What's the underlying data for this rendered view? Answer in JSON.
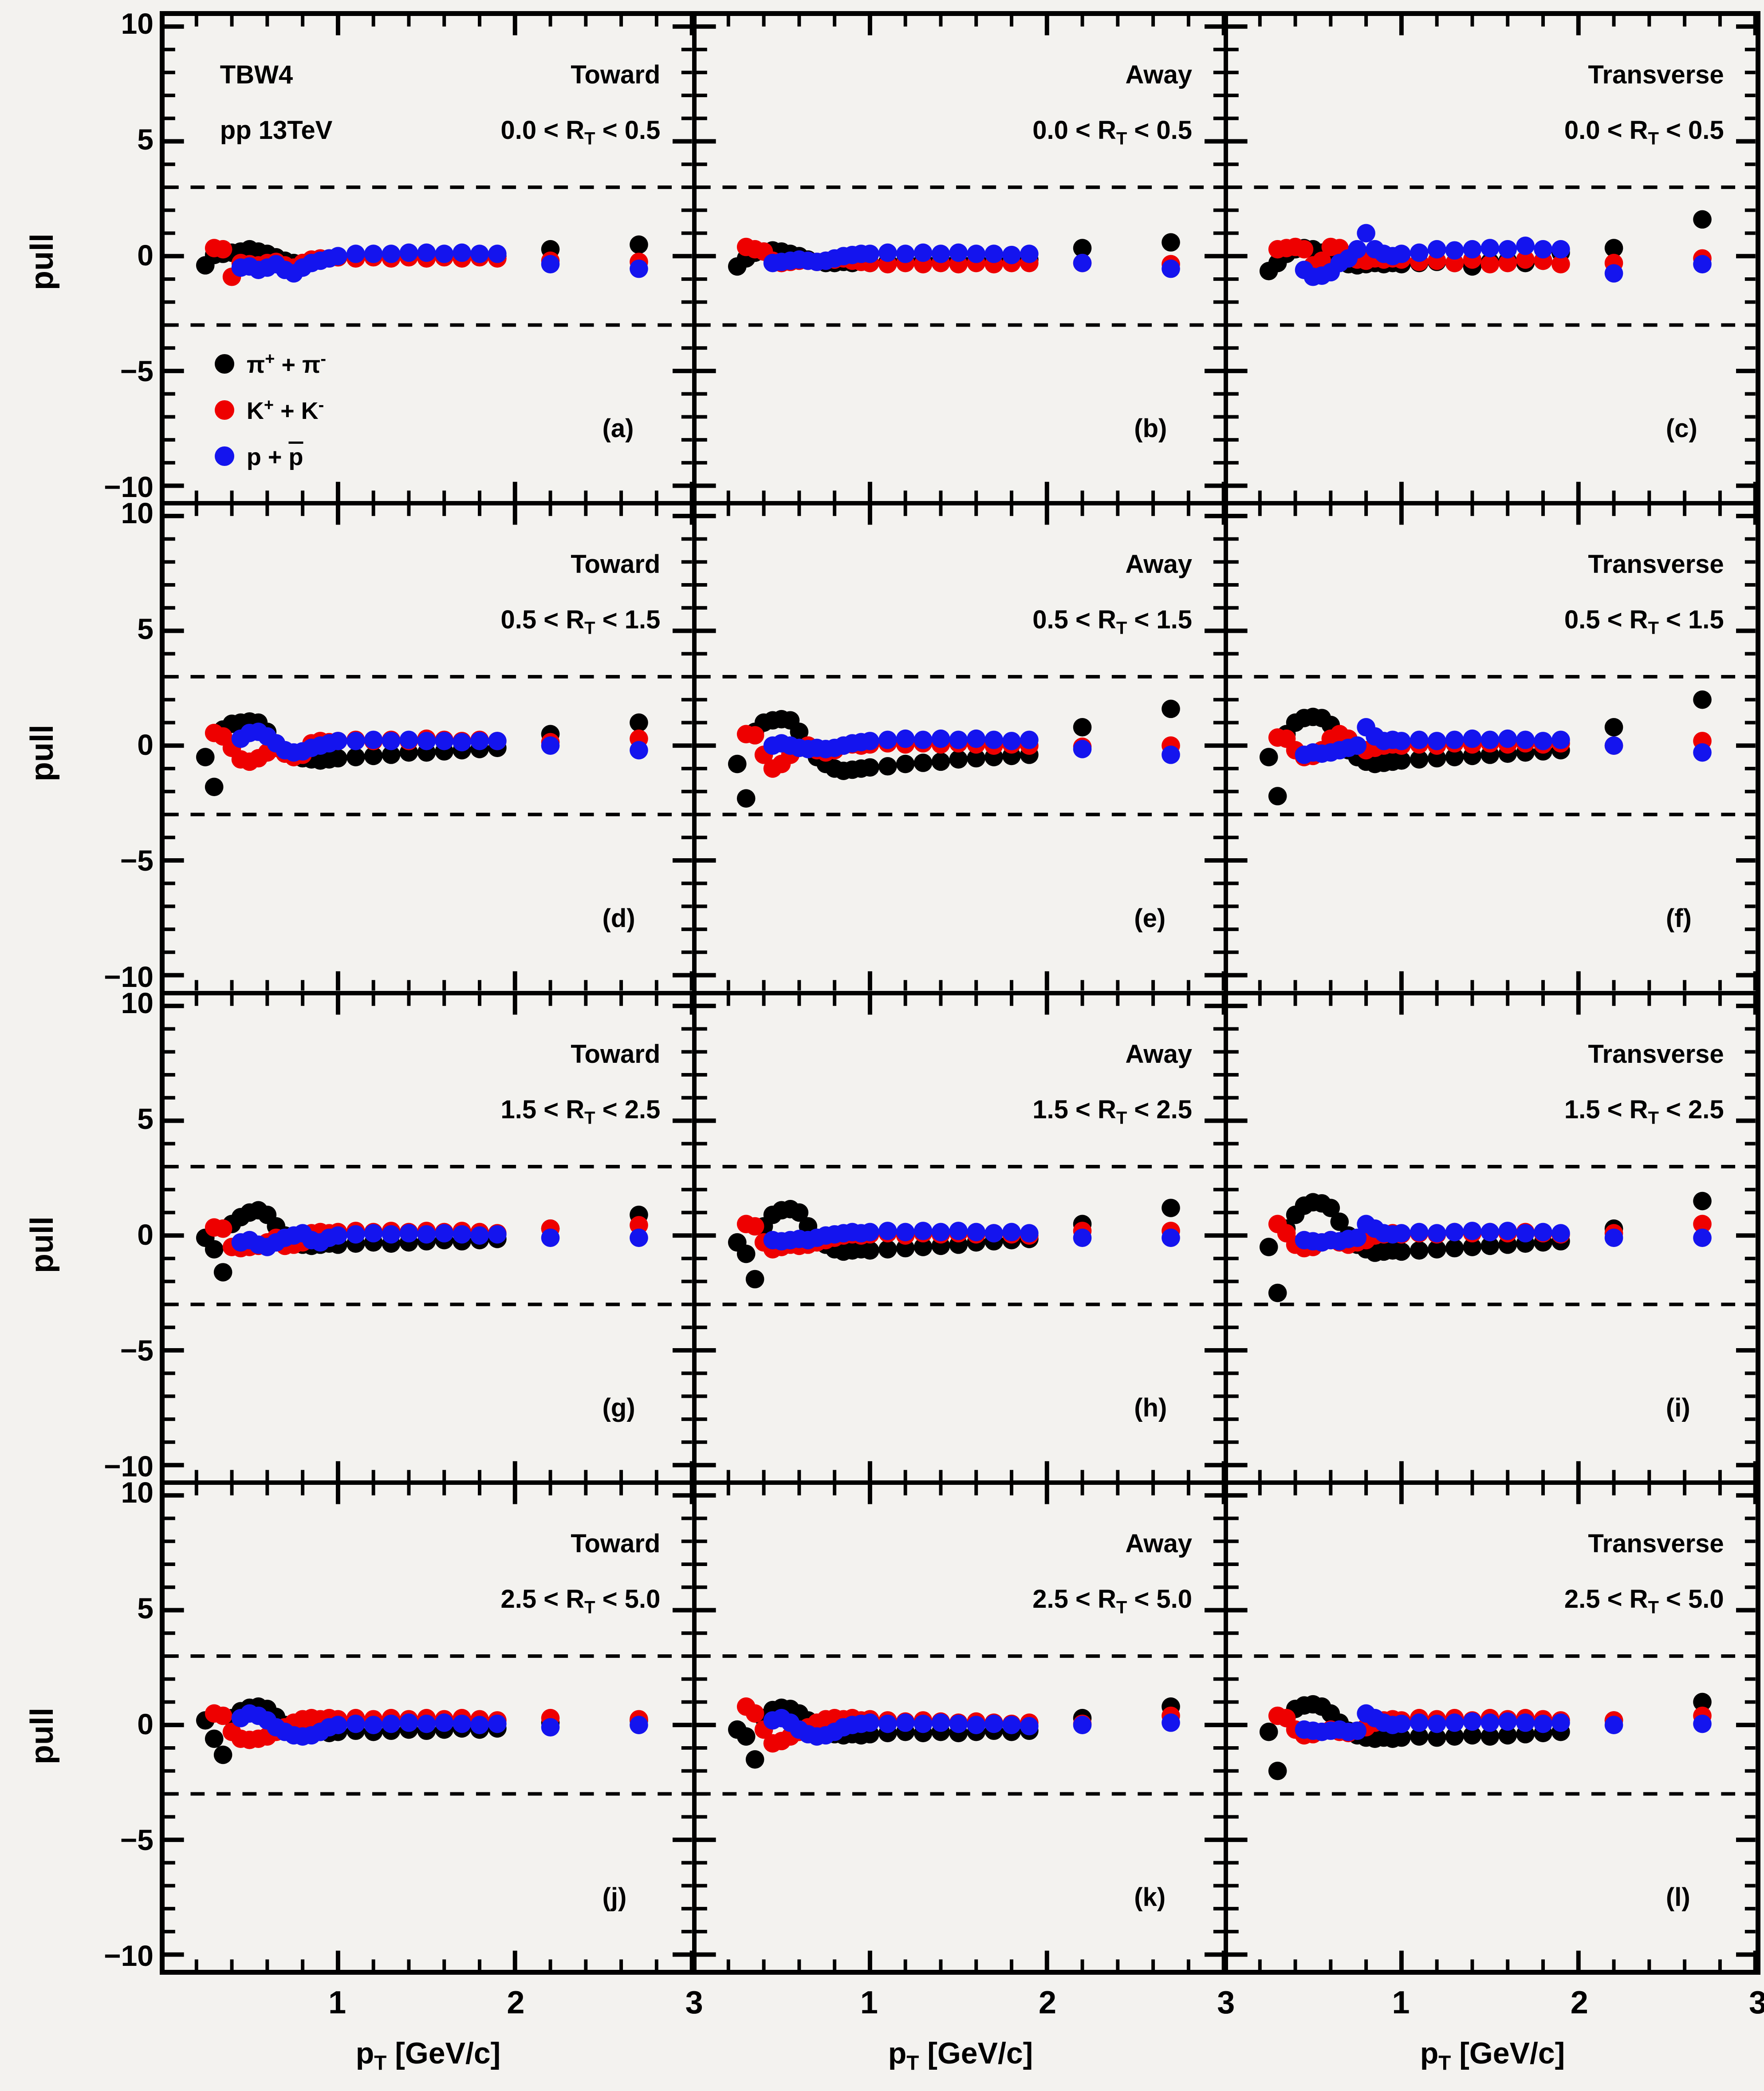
{
  "header": {
    "model": "TBW4",
    "system": "pp 13TeV"
  },
  "axes": {
    "y_title": "pull",
    "x_title_parts": [
      "p",
      "T",
      " [GeV/c]"
    ]
  },
  "legend": [
    {
      "a": "π",
      "asup": "+",
      "mid": " + ",
      "b": "π",
      "bsup": "-",
      "series": "pions"
    },
    {
      "a": "K",
      "asup": "+",
      "mid": " + ",
      "b": "K",
      "bsup": "-",
      "series": "kaons"
    },
    {
      "a": "p",
      "asup": "",
      "mid": " + ",
      "b": "p",
      "bsup": "",
      "series": "protons"
    }
  ],
  "chart_data": {
    "type": "scatter",
    "title": "TBW4 pp 13TeV pull distributions",
    "xlabel": "p_T [GeV/c]",
    "ylabel": "pull",
    "xlim": [
      0.02,
      3.0
    ],
    "ylim": [
      -10.67,
      10.46
    ],
    "band_lines": [
      3,
      -3
    ],
    "grid": false,
    "x_ticks": [
      {
        "label": "1",
        "v": 1
      },
      {
        "label": "2",
        "v": 2
      },
      {
        "label": "3",
        "v": 3
      }
    ],
    "x_minor_step": 0.2,
    "y_ticks": [
      {
        "label": "10",
        "v": 10
      },
      {
        "label": "5",
        "v": 5
      },
      {
        "label": "0",
        "v": 0
      },
      {
        "label": "−5",
        "v": -5
      },
      {
        "label": "−10",
        "v": -10
      }
    ],
    "y_minor_step": 1,
    "series_colors": {
      "pions": "#000000",
      "kaons": "#ee0000",
      "protons": "#1414ee"
    },
    "x_pions": [
      0.25,
      0.3,
      0.35,
      0.4,
      0.45,
      0.5,
      0.55,
      0.6,
      0.65,
      0.7,
      0.75,
      0.8,
      0.85,
      0.9,
      0.95,
      1.0,
      1.1,
      1.2,
      1.3,
      1.4,
      1.5,
      1.6,
      1.7,
      1.8,
      1.9,
      2.2,
      2.7
    ],
    "x_kaons": [
      0.3,
      0.35,
      0.4,
      0.45,
      0.5,
      0.55,
      0.6,
      0.65,
      0.7,
      0.75,
      0.8,
      0.85,
      0.9,
      0.95,
      1.0,
      1.1,
      1.2,
      1.3,
      1.4,
      1.5,
      1.6,
      1.7,
      1.8,
      1.9,
      2.2,
      2.7
    ],
    "x_protons": [
      0.45,
      0.5,
      0.55,
      0.6,
      0.65,
      0.7,
      0.75,
      0.8,
      0.85,
      0.9,
      0.95,
      1.0,
      1.1,
      1.2,
      1.3,
      1.4,
      1.5,
      1.6,
      1.7,
      1.8,
      1.9,
      2.2,
      2.7
    ],
    "panels": [
      {
        "letter": "(a)",
        "region": "Toward",
        "rt_parts": [
          "0.0 < R",
          "T",
          " < 0.5"
        ],
        "pions": [
          -0.4,
          0.05,
          0.1,
          0.15,
          0.2,
          0.3,
          0.2,
          0.1,
          -0.05,
          -0.2,
          -0.3,
          -0.3,
          -0.25,
          -0.15,
          -0.1,
          -0.05,
          0.0,
          0.05,
          0.05,
          0.0,
          0.05,
          0.05,
          0.0,
          0.0,
          0.0,
          0.3,
          0.5
        ],
        "kaons": [
          0.35,
          0.3,
          -0.9,
          -0.3,
          -0.35,
          -0.4,
          -0.3,
          -0.25,
          -0.4,
          -0.5,
          -0.3,
          -0.15,
          -0.1,
          -0.1,
          -0.05,
          -0.1,
          -0.05,
          -0.1,
          -0.05,
          -0.1,
          -0.05,
          -0.1,
          -0.05,
          -0.1,
          -0.2,
          -0.25
        ],
        "protons": [
          -0.5,
          -0.45,
          -0.6,
          -0.5,
          -0.35,
          -0.6,
          -0.75,
          -0.5,
          -0.3,
          -0.2,
          -0.1,
          0.0,
          0.1,
          0.1,
          0.1,
          0.15,
          0.15,
          0.1,
          0.15,
          0.1,
          0.1,
          -0.35,
          -0.55
        ]
      },
      {
        "letter": "(b)",
        "region": "Away",
        "rt_parts": [
          "0.0 < R",
          "T",
          " < 0.5"
        ],
        "pions": [
          -0.45,
          -0.1,
          0.15,
          0.2,
          0.25,
          0.2,
          0.1,
          0.0,
          -0.15,
          -0.25,
          -0.3,
          -0.3,
          -0.25,
          -0.3,
          -0.25,
          -0.3,
          -0.25,
          -0.2,
          -0.2,
          -0.15,
          -0.2,
          -0.15,
          -0.2,
          -0.15,
          -0.15,
          0.35,
          0.6
        ],
        "kaons": [
          0.4,
          0.3,
          0.2,
          -0.2,
          -0.3,
          -0.25,
          -0.2,
          -0.2,
          -0.25,
          -0.2,
          -0.15,
          -0.1,
          -0.2,
          -0.25,
          -0.3,
          -0.35,
          -0.3,
          -0.35,
          -0.3,
          -0.35,
          -0.3,
          -0.35,
          -0.3,
          -0.3,
          -0.3,
          -0.35
        ],
        "protons": [
          -0.3,
          -0.25,
          -0.2,
          -0.15,
          -0.2,
          -0.25,
          -0.2,
          -0.1,
          0.0,
          0.05,
          0.1,
          0.1,
          0.15,
          0.1,
          0.15,
          0.1,
          0.15,
          0.1,
          0.1,
          0.05,
          0.1,
          -0.3,
          -0.55
        ]
      },
      {
        "letter": "(c)",
        "region": "Transverse",
        "rt_parts": [
          "0.0 < R",
          "T",
          " < 0.5"
        ],
        "pions": [
          -0.65,
          -0.3,
          0.1,
          0.3,
          0.35,
          0.3,
          0.15,
          -0.1,
          -0.25,
          -0.35,
          -0.4,
          -0.35,
          -0.3,
          -0.35,
          -0.3,
          -0.35,
          -0.3,
          -0.25,
          -0.3,
          -0.45,
          -0.25,
          -0.2,
          -0.3,
          -0.2,
          0.15,
          0.35,
          1.6
        ],
        "kaons": [
          0.3,
          0.35,
          0.4,
          0.3,
          -0.4,
          -0.2,
          0.4,
          0.35,
          -0.1,
          -0.15,
          -0.2,
          -0.1,
          -0.15,
          -0.1,
          -0.15,
          -0.25,
          -0.2,
          -0.3,
          -0.15,
          -0.35,
          -0.3,
          -0.15,
          -0.2,
          -0.35,
          -0.3,
          -0.1
        ],
        "protons": [
          -0.6,
          -0.9,
          -0.85,
          -0.7,
          -0.3,
          -0.1,
          0.3,
          1.0,
          0.3,
          0.1,
          0.0,
          0.1,
          0.15,
          0.3,
          0.25,
          0.3,
          0.35,
          0.3,
          0.45,
          0.3,
          0.3,
          -0.75,
          -0.35
        ]
      },
      {
        "letter": "(d)",
        "region": "Toward",
        "rt_parts": [
          "0.5 < R",
          "T",
          " < 1.5"
        ],
        "pions": [
          -0.5,
          -1.8,
          0.7,
          0.95,
          1.0,
          1.05,
          1.0,
          0.6,
          0.1,
          -0.3,
          -0.5,
          -0.55,
          -0.6,
          -0.65,
          -0.6,
          -0.55,
          -0.5,
          -0.45,
          -0.4,
          -0.3,
          -0.3,
          -0.25,
          -0.2,
          -0.15,
          -0.1,
          0.5,
          1.0
        ],
        "kaons": [
          0.55,
          0.4,
          -0.1,
          -0.6,
          -0.7,
          -0.55,
          -0.3,
          -0.1,
          -0.35,
          -0.5,
          -0.4,
          0.1,
          0.2,
          0.15,
          0.2,
          0.25,
          0.2,
          0.25,
          0.2,
          0.3,
          0.25,
          0.2,
          0.25,
          0.2,
          0.15,
          0.3
        ],
        "protons": [
          0.3,
          0.55,
          0.6,
          0.4,
          0.1,
          -0.2,
          -0.3,
          -0.25,
          -0.1,
          0.0,
          0.1,
          0.2,
          0.2,
          0.25,
          0.2,
          0.25,
          0.2,
          0.2,
          0.15,
          0.2,
          0.2,
          0.0,
          -0.2
        ]
      },
      {
        "letter": "(e)",
        "region": "Away",
        "rt_parts": [
          "0.5 < R",
          "T",
          " < 1.5"
        ],
        "pions": [
          -0.8,
          -2.3,
          0.6,
          1.0,
          1.1,
          1.15,
          1.1,
          0.6,
          0.0,
          -0.5,
          -0.8,
          -1.0,
          -1.1,
          -1.05,
          -1.0,
          -0.95,
          -0.9,
          -0.8,
          -0.75,
          -0.7,
          -0.6,
          -0.55,
          -0.5,
          -0.45,
          -0.4,
          0.8,
          1.6
        ],
        "kaons": [
          0.5,
          0.45,
          -0.4,
          -1.0,
          -0.8,
          -0.4,
          -0.1,
          0.0,
          -0.2,
          -0.3,
          -0.2,
          0.0,
          0.05,
          0.0,
          0.05,
          0.1,
          0.05,
          0.1,
          0.05,
          0.1,
          0.05,
          0.0,
          0.05,
          0.0,
          -0.05,
          0.0
        ],
        "protons": [
          0.0,
          0.1,
          0.0,
          -0.1,
          -0.15,
          -0.1,
          -0.15,
          -0.1,
          0.0,
          0.1,
          0.15,
          0.2,
          0.25,
          0.3,
          0.25,
          0.3,
          0.25,
          0.3,
          0.25,
          0.2,
          0.25,
          -0.15,
          -0.4
        ]
      },
      {
        "letter": "(f)",
        "region": "Transverse",
        "rt_parts": [
          "0.5 < R",
          "T",
          " < 1.5"
        ],
        "pions": [
          -0.5,
          -2.2,
          0.5,
          1.0,
          1.2,
          1.25,
          1.2,
          0.9,
          0.3,
          -0.2,
          -0.5,
          -0.7,
          -0.8,
          -0.75,
          -0.7,
          -0.65,
          -0.6,
          -0.55,
          -0.5,
          -0.45,
          -0.4,
          -0.35,
          -0.3,
          -0.25,
          -0.2,
          0.8,
          2.0
        ],
        "kaons": [
          0.35,
          0.3,
          -0.2,
          -0.5,
          -0.45,
          -0.2,
          0.3,
          0.5,
          0.3,
          0.0,
          -0.2,
          -0.1,
          0.0,
          0.05,
          0.0,
          0.05,
          0.0,
          0.1,
          0.05,
          0.1,
          0.05,
          0.1,
          0.05,
          0.1,
          0.0,
          0.2
        ],
        "protons": [
          -0.4,
          -0.3,
          -0.35,
          -0.3,
          -0.2,
          -0.1,
          0.0,
          0.8,
          0.4,
          0.2,
          0.25,
          0.2,
          0.25,
          0.2,
          0.25,
          0.3,
          0.25,
          0.3,
          0.25,
          0.2,
          0.25,
          0.0,
          -0.3
        ]
      },
      {
        "letter": "(g)",
        "region": "Toward",
        "rt_parts": [
          "1.5 < R",
          "T",
          " < 2.5"
        ],
        "pions": [
          -0.1,
          -0.6,
          -1.6,
          0.5,
          0.8,
          1.0,
          1.1,
          0.9,
          0.4,
          0.0,
          -0.3,
          -0.4,
          -0.45,
          -0.4,
          -0.35,
          -0.4,
          -0.35,
          -0.3,
          -0.35,
          -0.3,
          -0.25,
          -0.2,
          -0.25,
          -0.2,
          -0.15,
          0.3,
          0.9
        ],
        "kaons": [
          0.35,
          0.3,
          -0.5,
          -0.55,
          -0.5,
          -0.45,
          -0.3,
          -0.1,
          -0.45,
          -0.4,
          -0.3,
          0.1,
          0.15,
          0.1,
          0.15,
          0.2,
          0.15,
          0.2,
          0.15,
          0.2,
          0.15,
          0.2,
          0.15,
          0.1,
          0.3,
          0.45
        ],
        "protons": [
          -0.3,
          -0.2,
          -0.4,
          -0.5,
          -0.3,
          -0.1,
          0.0,
          0.1,
          -0.2,
          -0.3,
          -0.1,
          0.0,
          0.05,
          0.1,
          0.05,
          0.1,
          0.05,
          0.1,
          0.05,
          0.0,
          0.05,
          -0.1,
          -0.1
        ]
      },
      {
        "letter": "(h)",
        "region": "Away",
        "rt_parts": [
          "1.5 < R",
          "T",
          " < 2.5"
        ],
        "pions": [
          -0.3,
          -0.8,
          -1.9,
          0.4,
          0.9,
          1.1,
          1.15,
          1.0,
          0.4,
          -0.1,
          -0.4,
          -0.6,
          -0.7,
          -0.65,
          -0.6,
          -0.65,
          -0.6,
          -0.55,
          -0.5,
          -0.45,
          -0.4,
          -0.3,
          -0.25,
          -0.2,
          -0.15,
          0.5,
          1.2
        ],
        "kaons": [
          0.5,
          0.4,
          -0.3,
          -0.6,
          -0.5,
          -0.4,
          -0.45,
          -0.4,
          -0.3,
          -0.2,
          -0.1,
          0.0,
          0.05,
          0.0,
          0.05,
          0.1,
          0.0,
          0.1,
          0.05,
          0.1,
          0.05,
          0.1,
          0.05,
          0.0,
          0.2,
          0.2
        ],
        "protons": [
          -0.2,
          -0.25,
          -0.2,
          -0.15,
          -0.2,
          -0.1,
          0.0,
          0.05,
          0.1,
          0.15,
          0.1,
          0.15,
          0.2,
          0.15,
          0.2,
          0.15,
          0.2,
          0.15,
          0.1,
          0.15,
          0.1,
          -0.1,
          -0.1
        ]
      },
      {
        "letter": "(i)",
        "region": "Transverse",
        "rt_parts": [
          "1.5 < R",
          "T",
          " < 2.5"
        ],
        "pions": [
          -0.5,
          -2.5,
          0.3,
          0.9,
          1.3,
          1.45,
          1.4,
          1.2,
          0.6,
          0.0,
          -0.4,
          -0.6,
          -0.75,
          -0.7,
          -0.65,
          -0.7,
          -0.65,
          -0.6,
          -0.55,
          -0.5,
          -0.45,
          -0.4,
          -0.35,
          -0.3,
          -0.25,
          0.3,
          1.5
        ],
        "kaons": [
          0.5,
          0.1,
          -0.4,
          -0.55,
          -0.5,
          -0.3,
          -0.2,
          -0.3,
          -0.4,
          -0.3,
          -0.2,
          0.0,
          0.05,
          0.1,
          0.05,
          0.1,
          0.05,
          0.15,
          0.1,
          0.15,
          0.1,
          0.15,
          0.1,
          0.05,
          0.1,
          0.5
        ],
        "protons": [
          -0.2,
          -0.25,
          -0.3,
          -0.2,
          -0.25,
          -0.15,
          -0.1,
          0.5,
          0.3,
          0.1,
          0.05,
          0.1,
          0.15,
          0.1,
          0.15,
          0.2,
          0.15,
          0.2,
          0.1,
          0.15,
          0.1,
          -0.1,
          -0.1
        ]
      },
      {
        "letter": "(j)",
        "region": "Toward",
        "rt_parts": [
          "2.5 < R",
          "T",
          " < 5.0"
        ],
        "pions": [
          0.2,
          -0.6,
          -1.3,
          0.3,
          0.6,
          0.75,
          0.8,
          0.7,
          0.35,
          0.0,
          -0.2,
          -0.3,
          -0.35,
          -0.3,
          -0.35,
          -0.3,
          -0.25,
          -0.3,
          -0.25,
          -0.2,
          -0.25,
          -0.2,
          -0.15,
          -0.2,
          -0.15,
          0.1,
          0.2
        ],
        "kaons": [
          0.5,
          0.4,
          -0.3,
          -0.6,
          -0.65,
          -0.6,
          -0.5,
          -0.3,
          -0.1,
          0.1,
          0.25,
          0.3,
          0.25,
          0.3,
          0.25,
          0.3,
          0.25,
          0.3,
          0.25,
          0.3,
          0.25,
          0.3,
          0.25,
          0.2,
          0.3,
          0.25
        ],
        "protons": [
          0.3,
          0.5,
          0.4,
          0.2,
          -0.1,
          -0.3,
          -0.45,
          -0.5,
          -0.45,
          -0.3,
          -0.1,
          0.0,
          0.05,
          0.0,
          0.05,
          0.1,
          0.05,
          0.1,
          0.05,
          0.0,
          0.05,
          -0.1,
          0.0
        ]
      },
      {
        "letter": "(k)",
        "region": "Away",
        "rt_parts": [
          "2.5 < R",
          "T",
          " < 5.0"
        ],
        "pions": [
          -0.2,
          -0.5,
          -1.5,
          0.3,
          0.65,
          0.75,
          0.7,
          0.5,
          0.2,
          -0.1,
          -0.3,
          -0.4,
          -0.45,
          -0.4,
          -0.45,
          -0.4,
          -0.35,
          -0.3,
          -0.35,
          -0.3,
          -0.35,
          -0.3,
          -0.25,
          -0.3,
          -0.25,
          0.3,
          0.8
        ],
        "kaons": [
          0.8,
          0.5,
          -0.2,
          -0.8,
          -0.7,
          -0.5,
          -0.3,
          -0.1,
          0.1,
          0.25,
          0.3,
          0.25,
          0.3,
          0.2,
          0.25,
          0.2,
          0.15,
          0.2,
          0.15,
          0.1,
          0.15,
          0.1,
          0.05,
          0.1,
          0.05,
          0.4
        ],
        "protons": [
          0.2,
          0.3,
          0.1,
          -0.2,
          -0.4,
          -0.5,
          -0.45,
          -0.3,
          -0.1,
          0.0,
          0.05,
          0.1,
          0.05,
          0.1,
          0.05,
          0.1,
          0.05,
          0.0,
          0.05,
          0.0,
          -0.05,
          0.0,
          0.1
        ]
      },
      {
        "letter": "(l)",
        "region": "Transverse",
        "rt_parts": [
          "2.5 < R",
          "T",
          " < 5.0"
        ],
        "pions": [
          -0.3,
          -2.0,
          0.3,
          0.7,
          0.85,
          0.9,
          0.8,
          0.5,
          0.1,
          -0.25,
          -0.45,
          -0.55,
          -0.6,
          -0.55,
          -0.6,
          -0.55,
          -0.5,
          -0.55,
          -0.5,
          -0.45,
          -0.5,
          -0.45,
          -0.4,
          -0.35,
          -0.3,
          0.2,
          1.0
        ],
        "kaons": [
          0.4,
          0.3,
          -0.2,
          -0.45,
          -0.4,
          -0.3,
          -0.2,
          -0.3,
          -0.35,
          -0.25,
          -0.1,
          0.1,
          0.2,
          0.25,
          0.2,
          0.3,
          0.25,
          0.3,
          0.2,
          0.3,
          0.25,
          0.3,
          0.25,
          0.2,
          0.2,
          0.4
        ],
        "protons": [
          -0.2,
          -0.25,
          -0.3,
          -0.25,
          -0.2,
          -0.3,
          -0.25,
          0.5,
          0.3,
          0.1,
          0.0,
          0.05,
          0.1,
          0.05,
          0.1,
          0.15,
          0.1,
          0.15,
          0.1,
          0.05,
          0.1,
          0.0,
          0.05
        ]
      }
    ]
  }
}
